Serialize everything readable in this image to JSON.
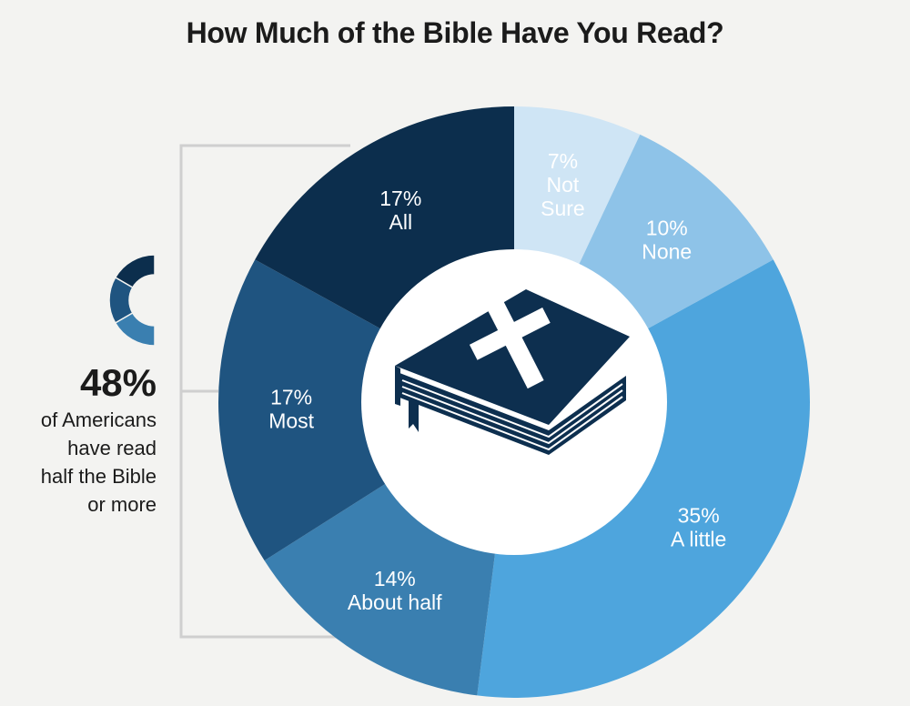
{
  "title": "How Much of the Bible Have You Read?",
  "colors": {
    "background": "#f3f3f1",
    "bracket": "#cfcfcf",
    "book": "#0d2f4f"
  },
  "icons": {
    "center": "bible-book-icon",
    "mini": "mini-donut-icon"
  },
  "callout": {
    "percent": "48%",
    "text_lines": [
      "of Americans",
      "have read",
      "half the Bible",
      "or more"
    ]
  },
  "chart_data": {
    "type": "pie",
    "donut": true,
    "title": "How Much of the Bible Have You Read?",
    "slices": [
      {
        "label_lines": [
          "Not",
          "Sure"
        ],
        "label": "Not Sure",
        "value": 7,
        "value_label": "7%",
        "color": "#cfe5f5"
      },
      {
        "label_lines": [
          "None"
        ],
        "label": "None",
        "value": 10,
        "value_label": "10%",
        "color": "#8ec3e8"
      },
      {
        "label_lines": [
          "A little"
        ],
        "label": "A little",
        "value": 35,
        "value_label": "35%",
        "color": "#4ea5dd"
      },
      {
        "label_lines": [
          "About half"
        ],
        "label": "About half",
        "value": 14,
        "value_label": "14%",
        "color": "#3a7fb0"
      },
      {
        "label_lines": [
          "Most"
        ],
        "label": "Most",
        "value": 17,
        "value_label": "17%",
        "color": "#1f5480"
      },
      {
        "label_lines": [
          "All"
        ],
        "label": "All",
        "value": 17,
        "value_label": "17%",
        "color": "#0c2e4d"
      }
    ]
  }
}
